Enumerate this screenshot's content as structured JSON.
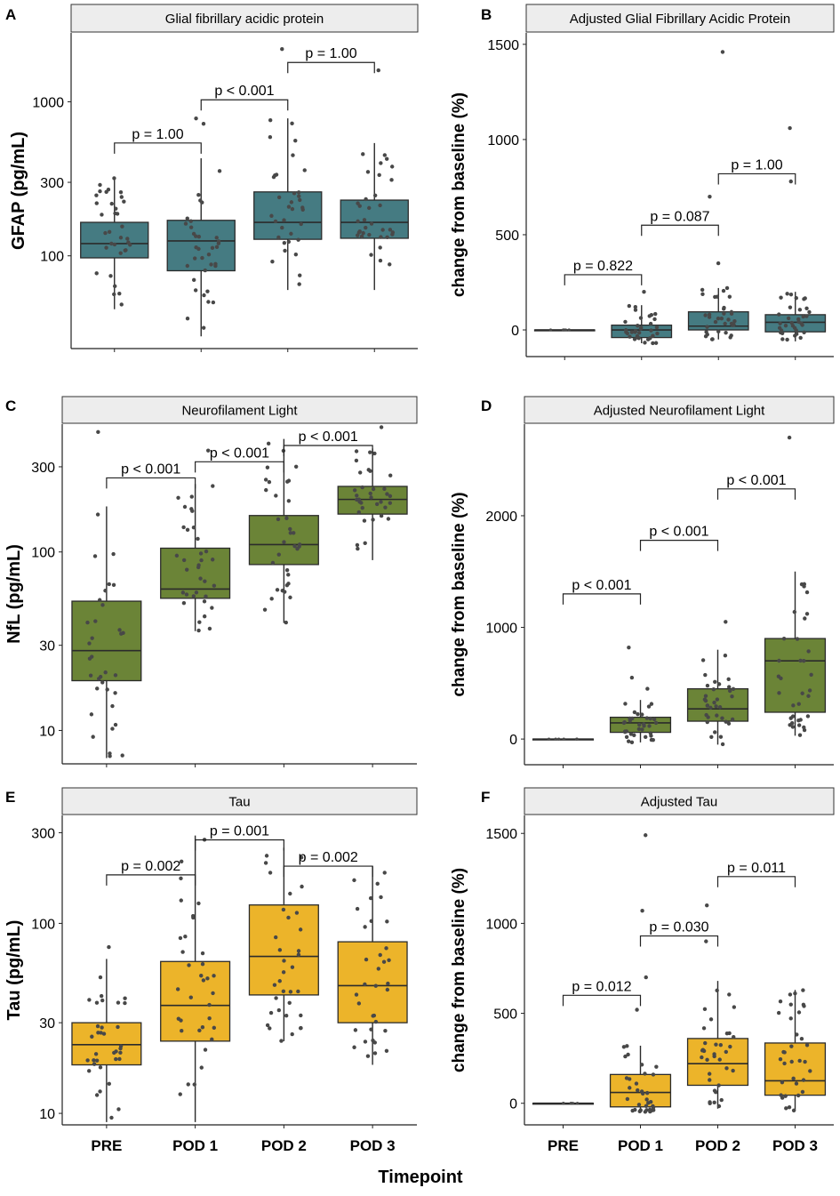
{
  "figure": {
    "x_axis_title": "Timepoint",
    "x_categories": [
      "PRE",
      "POD 1",
      "POD 2",
      "POD 3"
    ],
    "colors": {
      "gfap": "#457b82",
      "nfl": "#6b8437",
      "tau": "#ecb42a",
      "point": "#484848",
      "strip": "#ededed"
    }
  },
  "chart_data": [
    {
      "panel": "A",
      "type": "box",
      "title": "Glial fibrillary acidic protein",
      "ylabel": "GFAP (pg/mL)",
      "yscale": "log",
      "ylim": [
        25,
        2800
      ],
      "yticks": [
        100,
        300,
        1000
      ],
      "ytick_labels": [
        "100",
        "300",
        "1000"
      ],
      "color_key": "gfap",
      "boxes": [
        {
          "category": "PRE",
          "whisker_low": 45,
          "q1": 97,
          "median": 120,
          "q3": 165,
          "whisker_high": 320,
          "outliers": []
        },
        {
          "category": "POD 1",
          "whisker_low": 30,
          "q1": 80,
          "median": 125,
          "q3": 170,
          "whisker_high": 430,
          "outliers": [
            720,
            780
          ]
        },
        {
          "category": "POD 2",
          "whisker_low": 60,
          "q1": 128,
          "median": 165,
          "q3": 260,
          "whisker_high": 780,
          "outliers": [
            2200
          ]
        },
        {
          "category": "POD 3",
          "whisker_low": 60,
          "q1": 130,
          "median": 165,
          "q3": 230,
          "whisker_high": 540,
          "outliers": [
            1600
          ]
        }
      ],
      "comparisons": [
        {
          "from": "PRE",
          "to": "POD 1",
          "label": "p = 1.00",
          "y": 540
        },
        {
          "from": "POD 1",
          "to": "POD 2",
          "label": "p < 0.001",
          "y": 1030
        },
        {
          "from": "POD 2",
          "to": "POD 3",
          "label": "p = 1.00",
          "y": 1800
        }
      ]
    },
    {
      "panel": "B",
      "type": "box",
      "title": "Adjusted Glial Fibrillary Acidic Protein",
      "ylabel": "change from baseline (%)",
      "yscale": "linear",
      "ylim": [
        -140,
        1560
      ],
      "yticks": [
        0,
        500,
        1000,
        1500
      ],
      "ytick_labels": [
        "0",
        "500",
        "1000",
        "1500"
      ],
      "color_key": "gfap",
      "boxes": [
        {
          "category": "PRE",
          "whisker_low": 0,
          "q1": 0,
          "median": 0,
          "q3": 0,
          "whisker_high": 0,
          "outliers": []
        },
        {
          "category": "POD 1",
          "whisker_low": -70,
          "q1": -40,
          "median": 0,
          "q3": 25,
          "whisker_high": 130,
          "outliers": [
            200
          ]
        },
        {
          "category": "POD 2",
          "whisker_low": -50,
          "q1": 0,
          "median": 20,
          "q3": 95,
          "whisker_high": 220,
          "outliers": [
            350,
            700,
            1460
          ]
        },
        {
          "category": "POD 3",
          "whisker_low": -60,
          "q1": -10,
          "median": 40,
          "q3": 80,
          "whisker_high": 200,
          "outliers": [
            780,
            1060
          ]
        }
      ],
      "comparisons": [
        {
          "from": "PRE",
          "to": "POD 1",
          "label": "p = 0.822",
          "y": 290
        },
        {
          "from": "POD 1",
          "to": "POD 2",
          "label": "p = 0.087",
          "y": 550
        },
        {
          "from": "POD 2",
          "to": "POD 3",
          "label": "p = 1.00",
          "y": 820
        }
      ]
    },
    {
      "panel": "C",
      "type": "box",
      "title": "Neurofilament Light",
      "ylabel": "NfL (pg/mL)",
      "yscale": "log",
      "ylim": [
        6.5,
        520
      ],
      "yticks": [
        10,
        30,
        100,
        300
      ],
      "ytick_labels": [
        "10",
        "30",
        "100",
        "300"
      ],
      "color_key": "nfl",
      "boxes": [
        {
          "category": "PRE",
          "whisker_low": 7,
          "q1": 19,
          "median": 28,
          "q3": 53,
          "whisker_high": 180,
          "outliers": [
            470
          ]
        },
        {
          "category": "POD 1",
          "whisker_low": 36,
          "q1": 55,
          "median": 62,
          "q3": 105,
          "whisker_high": 240,
          "outliers": [
            370
          ]
        },
        {
          "category": "POD 2",
          "whisker_low": 40,
          "q1": 85,
          "median": 110,
          "q3": 160,
          "whisker_high": 430,
          "outliers": []
        },
        {
          "category": "POD 3",
          "whisker_low": 90,
          "q1": 163,
          "median": 197,
          "q3": 233,
          "whisker_high": 380,
          "outliers": [
            500
          ]
        }
      ],
      "comparisons": [
        {
          "from": "PRE",
          "to": "POD 1",
          "label": "p < 0.001",
          "y": 260
        },
        {
          "from": "POD 1",
          "to": "POD 2",
          "label": "p < 0.001",
          "y": 320
        },
        {
          "from": "POD 2",
          "to": "POD 3",
          "label": "p < 0.001",
          "y": 395
        }
      ]
    },
    {
      "panel": "D",
      "type": "box",
      "title": "Adjusted Neurofilament Light",
      "ylabel": "change from baseline (%)",
      "yscale": "linear",
      "ylim": [
        -230,
        2820
      ],
      "yticks": [
        0,
        1000,
        2000
      ],
      "ytick_labels": [
        "0",
        "1000",
        "2000"
      ],
      "color_key": "nfl",
      "boxes": [
        {
          "category": "PRE",
          "whisker_low": 0,
          "q1": 0,
          "median": 0,
          "q3": 0,
          "whisker_high": 0,
          "outliers": []
        },
        {
          "category": "POD 1",
          "whisker_low": -30,
          "q1": 60,
          "median": 145,
          "q3": 195,
          "whisker_high": 350,
          "outliers": [
            450,
            550,
            820
          ]
        },
        {
          "category": "POD 2",
          "whisker_low": -50,
          "q1": 160,
          "median": 270,
          "q3": 450,
          "whisker_high": 800,
          "outliers": [
            1050
          ]
        },
        {
          "category": "POD 3",
          "whisker_low": 30,
          "q1": 240,
          "median": 700,
          "q3": 900,
          "whisker_high": 1500,
          "outliers": [
            2700
          ]
        }
      ],
      "comparisons": [
        {
          "from": "PRE",
          "to": "POD 1",
          "label": "p < 0.001",
          "y": 1300
        },
        {
          "from": "POD 1",
          "to": "POD 2",
          "label": "p < 0.001",
          "y": 1780
        },
        {
          "from": "POD 2",
          "to": "POD 3",
          "label": "p < 0.001",
          "y": 2240
        }
      ]
    },
    {
      "panel": "E",
      "type": "box",
      "title": "Tau",
      "ylabel": "Tau (pg/mL)",
      "yscale": "log",
      "ylim": [
        8.7,
        370
      ],
      "yticks": [
        10,
        30,
        100,
        300
      ],
      "ytick_labels": [
        "10",
        "30",
        "100",
        "300"
      ],
      "color_key": "tau",
      "boxes": [
        {
          "category": "PRE",
          "whisker_low": 9,
          "q1": 18,
          "median": 23,
          "q3": 30,
          "whisker_high": 65,
          "outliers": [
            75
          ]
        },
        {
          "category": "POD 1",
          "whisker_low": 9,
          "q1": 24,
          "median": 37,
          "q3": 63,
          "whisker_high": 290,
          "outliers": []
        },
        {
          "category": "POD 2",
          "whisker_low": 24,
          "q1": 42,
          "median": 67,
          "q3": 125,
          "whisker_high": 250,
          "outliers": []
        },
        {
          "category": "POD 3",
          "whisker_low": 18,
          "q1": 30,
          "median": 47,
          "q3": 80,
          "whisker_high": 200,
          "outliers": []
        }
      ],
      "comparisons": [
        {
          "from": "PRE",
          "to": "POD 1",
          "label": "p = 0.002",
          "y": 180
        },
        {
          "from": "POD 1",
          "to": "POD 2",
          "label": "p = 0.001",
          "y": 275
        },
        {
          "from": "POD 2",
          "to": "POD 3",
          "label": "p = 0.002",
          "y": 200
        }
      ]
    },
    {
      "panel": "F",
      "type": "box",
      "title": "Adjusted Tau",
      "ylabel": "change from baseline (%)",
      "yscale": "linear",
      "ylim": [
        -120,
        1600
      ],
      "yticks": [
        0,
        500,
        1000,
        1500
      ],
      "ytick_labels": [
        "0",
        "500",
        "1000",
        "1500"
      ],
      "color_key": "tau",
      "boxes": [
        {
          "category": "PRE",
          "whisker_low": 0,
          "q1": 0,
          "median": 0,
          "q3": 0,
          "whisker_high": 0,
          "outliers": []
        },
        {
          "category": "POD 1",
          "whisker_low": -50,
          "q1": -20,
          "median": 60,
          "q3": 160,
          "whisker_high": 320,
          "outliers": [
            520,
            700,
            1070,
            1490
          ]
        },
        {
          "category": "POD 2",
          "whisker_low": -30,
          "q1": 100,
          "median": 220,
          "q3": 360,
          "whisker_high": 680,
          "outliers": [
            900,
            1100
          ]
        },
        {
          "category": "POD 3",
          "whisker_low": -40,
          "q1": 45,
          "median": 125,
          "q3": 335,
          "whisker_high": 630,
          "outliers": []
        }
      ],
      "comparisons": [
        {
          "from": "PRE",
          "to": "POD 1",
          "label": "p = 0.012",
          "y": 600
        },
        {
          "from": "POD 1",
          "to": "POD 2",
          "label": "p = 0.030",
          "y": 930
        },
        {
          "from": "POD 2",
          "to": "POD 3",
          "label": "p = 0.011",
          "y": 1260
        }
      ]
    }
  ]
}
